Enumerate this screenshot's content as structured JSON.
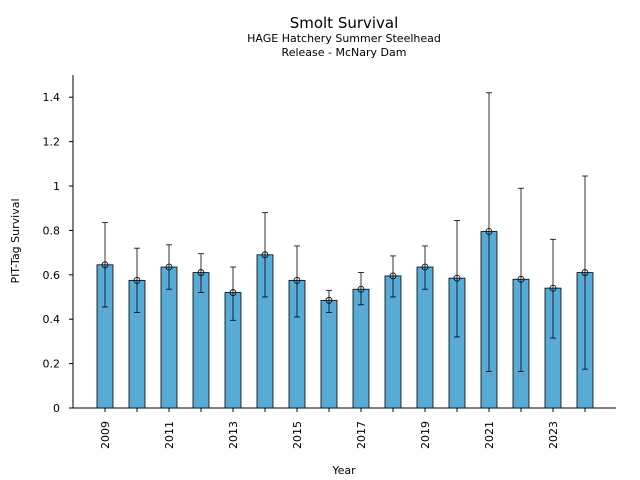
{
  "chart_data": {
    "type": "bar",
    "title": "Smolt Survival",
    "subtitle_lines": [
      "HAGE Hatchery Summer Steelhead",
      "Release - McNary Dam"
    ],
    "xlabel": "Year",
    "ylabel": "PIT-Tag Survival",
    "ylim": [
      0,
      1.5
    ],
    "y_ticks": [
      0,
      0.2,
      0.4,
      0.6,
      0.8,
      1,
      1.2,
      1.4
    ],
    "y_tick_labels": [
      "0",
      "0.2",
      "0.4",
      "0.6",
      "0.8",
      "1",
      "1.2",
      "1.4"
    ],
    "categories": [
      2009,
      2010,
      2011,
      2012,
      2013,
      2014,
      2015,
      2016,
      2017,
      2018,
      2019,
      2020,
      2021,
      2022,
      2023,
      2024
    ],
    "x_tick_labels": [
      "2009",
      "",
      "2011",
      "",
      "2013",
      "",
      "2015",
      "",
      "2017",
      "",
      "2019",
      "",
      "2021",
      "",
      "2023",
      ""
    ],
    "values": [
      0.645,
      0.575,
      0.635,
      0.61,
      0.52,
      0.69,
      0.575,
      0.485,
      0.535,
      0.595,
      0.635,
      0.585,
      0.795,
      0.58,
      0.54,
      0.61
    ],
    "error_lower": [
      0.455,
      0.43,
      0.535,
      0.52,
      0.395,
      0.5,
      0.41,
      0.43,
      0.465,
      0.5,
      0.535,
      0.32,
      0.165,
      0.165,
      0.315,
      0.175
    ],
    "error_upper": [
      0.835,
      0.72,
      0.735,
      0.695,
      0.635,
      0.88,
      0.73,
      0.53,
      0.61,
      0.685,
      0.73,
      0.845,
      1.42,
      0.99,
      0.76,
      1.045
    ],
    "bar_color": "#5aaad6",
    "edge_color": "#000000",
    "grid": false,
    "legend": "none"
  }
}
